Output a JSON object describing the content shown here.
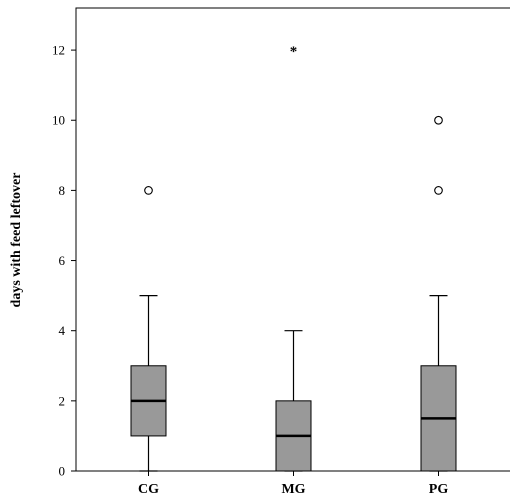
{
  "chart_data": {
    "type": "box",
    "title": "",
    "xlabel": "",
    "ylabel": "days with feed leftover",
    "ylim": [
      0,
      13.2
    ],
    "yticks": [
      0,
      2,
      4,
      6,
      8,
      10,
      12
    ],
    "grid": false,
    "legend": "none",
    "box_color": "#999999",
    "categories": [
      "CG",
      "MG",
      "PG"
    ],
    "boxes": [
      {
        "category": "CG",
        "whisker_low": 0,
        "q1": 1,
        "median": 2,
        "q3": 3,
        "whisker_high": 5,
        "outliers": [
          {
            "value": 8,
            "marker": "circle"
          }
        ]
      },
      {
        "category": "MG",
        "whisker_low": 0,
        "q1": 0,
        "median": 1,
        "q3": 2,
        "whisker_high": 4,
        "outliers": [
          {
            "value": 12,
            "marker": "star"
          }
        ]
      },
      {
        "category": "PG",
        "whisker_low": 0,
        "q1": 0,
        "median": 1.5,
        "q3": 3,
        "whisker_high": 5,
        "outliers": [
          {
            "value": 8,
            "marker": "circle"
          },
          {
            "value": 10,
            "marker": "circle"
          }
        ]
      }
    ]
  }
}
